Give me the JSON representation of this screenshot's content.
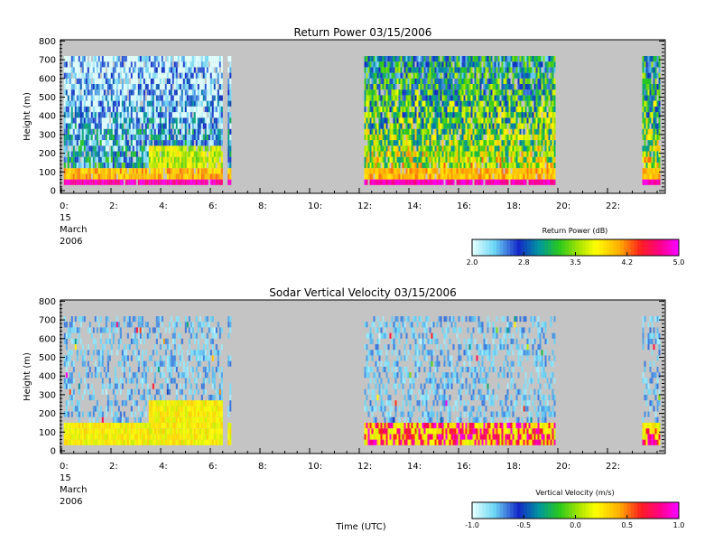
{
  "chart_data": [
    {
      "type": "heatmap",
      "title": "Return Power 03/15/2006",
      "ylabel": "Height (m)",
      "xlabel": "",
      "date_label": [
        "15",
        "March",
        "2006"
      ],
      "xlim": [
        0,
        24
      ],
      "ylim": [
        0,
        800
      ],
      "x_ticks": [
        "0:",
        "2:",
        "4:",
        "6:",
        "8:",
        "10:",
        "12:",
        "14:",
        "16:",
        "18:",
        "20:",
        "22:"
      ],
      "y_ticks": [
        "0",
        "100",
        "200",
        "300",
        "400",
        "500",
        "600",
        "700",
        "800"
      ],
      "data_segments_utc": [
        [
          0.1,
          6.5
        ],
        [
          6.7,
          6.8
        ],
        [
          12.2,
          19.9
        ],
        [
          23.4,
          24.1
        ]
      ],
      "height_range_m": [
        30,
        720
      ],
      "colorbar": {
        "label": "Return Power (dB)",
        "min": 2.0,
        "max": 5.0,
        "ticks": [
          "2.0",
          "2.8",
          "3.5",
          "4.2",
          "5.0"
        ]
      },
      "background_color": "#c4c4c4"
    },
    {
      "type": "heatmap",
      "title": "Sodar Vertical Velocity 03/15/2006",
      "ylabel": "Height (m)",
      "xlabel": "Time (UTC)",
      "date_label": [
        "15",
        "March",
        "2006"
      ],
      "xlim": [
        0,
        24
      ],
      "ylim": [
        0,
        800
      ],
      "x_ticks": [
        "0:",
        "2:",
        "4:",
        "6:",
        "8:",
        "10:",
        "12:",
        "14:",
        "16:",
        "18:",
        "20:",
        "22:"
      ],
      "y_ticks": [
        "0",
        "100",
        "200",
        "300",
        "400",
        "500",
        "600",
        "700",
        "800"
      ],
      "data_segments_utc": [
        [
          0.1,
          6.5
        ],
        [
          6.7,
          6.8
        ],
        [
          12.2,
          19.9
        ],
        [
          23.4,
          24.1
        ]
      ],
      "height_range_m": [
        30,
        720
      ],
      "colorbar": {
        "label": "Vertical Velocity (m/s)",
        "min": -1.0,
        "max": 1.0,
        "ticks": [
          "-1.0",
          "-0.5",
          "0.0",
          "0.5",
          "1.0"
        ]
      },
      "background_color": "#c4c4c4"
    }
  ]
}
